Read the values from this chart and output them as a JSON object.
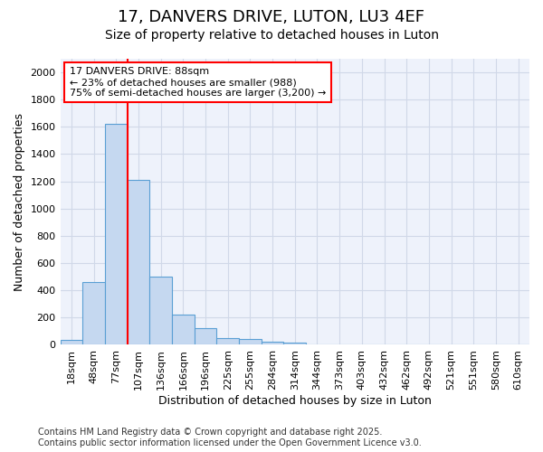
{
  "title": "17, DANVERS DRIVE, LUTON, LU3 4EF",
  "subtitle": "Size of property relative to detached houses in Luton",
  "xlabel": "Distribution of detached houses by size in Luton",
  "ylabel": "Number of detached properties",
  "categories": [
    "18sqm",
    "48sqm",
    "77sqm",
    "107sqm",
    "136sqm",
    "166sqm",
    "196sqm",
    "225sqm",
    "255sqm",
    "284sqm",
    "314sqm",
    "344sqm",
    "373sqm",
    "403sqm",
    "432sqm",
    "462sqm",
    "492sqm",
    "521sqm",
    "551sqm",
    "580sqm",
    "610sqm"
  ],
  "values": [
    35,
    460,
    1620,
    1210,
    500,
    220,
    120,
    50,
    40,
    25,
    15,
    0,
    0,
    0,
    0,
    0,
    0,
    0,
    0,
    0,
    0
  ],
  "bar_color": "#c5d8f0",
  "bar_edge_color": "#5a9fd4",
  "vline_color": "red",
  "annotation_line1": "17 DANVERS DRIVE: 88sqm",
  "annotation_line2": "← 23% of detached houses are smaller (988)",
  "annotation_line3": "75% of semi-detached houses are larger (3,200) →",
  "annotation_box_color": "white",
  "annotation_box_edge": "red",
  "ylim": [
    0,
    2100
  ],
  "yticks": [
    0,
    200,
    400,
    600,
    800,
    1000,
    1200,
    1400,
    1600,
    1800,
    2000
  ],
  "background_color": "#ffffff",
  "plot_bg_color": "#eef2fb",
  "grid_color": "#d0d8e8",
  "footer": "Contains HM Land Registry data © Crown copyright and database right 2025.\nContains public sector information licensed under the Open Government Licence v3.0.",
  "title_fontsize": 13,
  "subtitle_fontsize": 10,
  "ylabel_fontsize": 9,
  "xlabel_fontsize": 9,
  "tick_fontsize": 8,
  "footer_fontsize": 7
}
